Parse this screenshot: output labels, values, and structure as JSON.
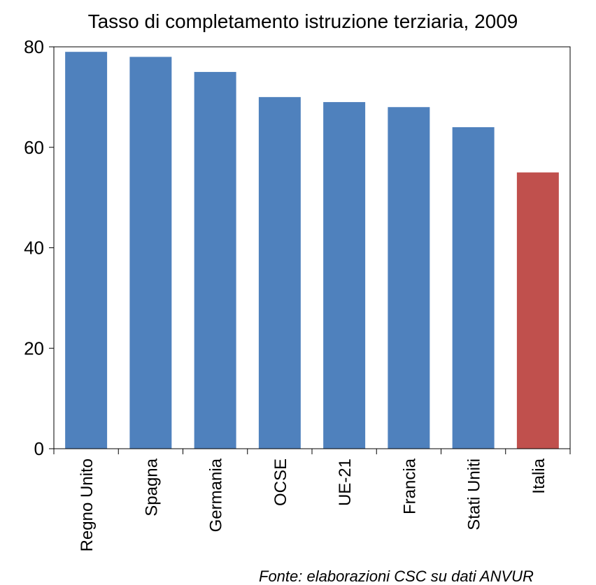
{
  "chart_data": {
    "type": "bar",
    "title": "Tasso di completamento istruzione terziaria, 2009",
    "categories": [
      "Regno Unito",
      "Spagna",
      "Germania",
      "OCSE",
      "UE-21",
      "Francia",
      "Stati Uniti",
      "Italia"
    ],
    "values": [
      79,
      78,
      75,
      70,
      69,
      68,
      64,
      55
    ],
    "colors": [
      "#4f81bd",
      "#4f81bd",
      "#4f81bd",
      "#4f81bd",
      "#4f81bd",
      "#4f81bd",
      "#4f81bd",
      "#c0504d"
    ],
    "ylim": [
      0,
      80
    ],
    "yticks": [
      0,
      20,
      40,
      60,
      80
    ],
    "grid": false,
    "source": "Fonte: elaborazioni CSC su dati ANVUR"
  }
}
